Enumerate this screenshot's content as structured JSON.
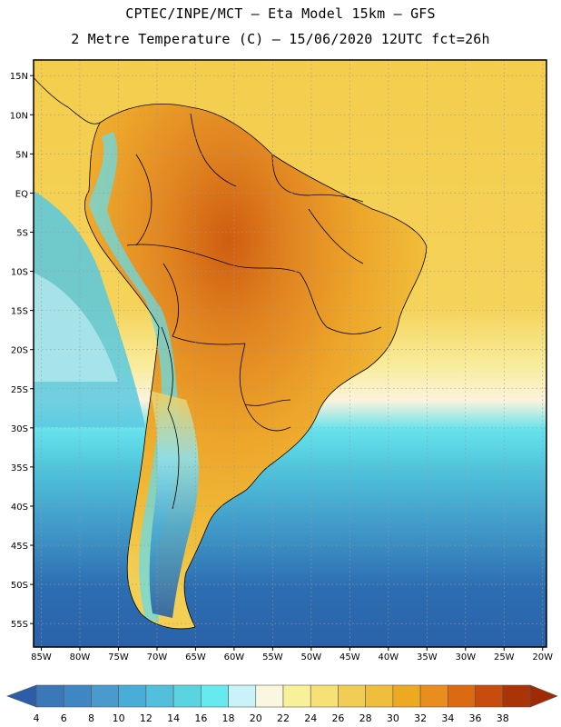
{
  "header": {
    "line1": "CPTEC/INPE/MCT –  Eta Model 15km – GFS",
    "line2": "2 Metre Temperature (C) – 15/06/2020 12UTC fct=26h"
  },
  "map": {
    "lat_labels": [
      "15N",
      "10N",
      "5N",
      "EQ",
      "5S",
      "10S",
      "15S",
      "20S",
      "25S",
      "30S",
      "35S",
      "40S",
      "45S",
      "50S",
      "55S"
    ],
    "lat_values": [
      15,
      10,
      5,
      0,
      -5,
      -10,
      -15,
      -20,
      -25,
      -30,
      -35,
      -40,
      -45,
      -50,
      -55
    ],
    "lon_labels": [
      "85W",
      "80W",
      "75W",
      "70W",
      "65W",
      "60W",
      "55W",
      "50W",
      "45W",
      "40W",
      "35W",
      "30W",
      "25W",
      "20W"
    ],
    "lon_values": [
      -85,
      -80,
      -75,
      -70,
      -65,
      -60,
      -55,
      -50,
      -45,
      -40,
      -35,
      -30,
      -25,
      -20
    ],
    "extent": {
      "lon_min": -86,
      "lon_max": -19.5,
      "lat_min": -58,
      "lat_max": 17
    },
    "grid": true,
    "field": "2 m temperature",
    "land_color": "#f2c84a",
    "ocean_warm_color": "#f5d55e",
    "ocean_cold_color": "#2a6db0"
  },
  "colorbar": {
    "labels": [
      "4",
      "6",
      "8",
      "10",
      "12",
      "14",
      "16",
      "18",
      "20",
      "22",
      "24",
      "26",
      "28",
      "30",
      "32",
      "34",
      "36",
      "38"
    ],
    "colors": [
      "#3a78b8",
      "#3e86c4",
      "#4a9acd",
      "#49aed7",
      "#52c0dc",
      "#5bd4e2",
      "#66eaf0",
      "#c9f2f9",
      "#fbf6e0",
      "#f9f19a",
      "#f6e176",
      "#f2cd55",
      "#efbe3c",
      "#eda920",
      "#e88d1e",
      "#dc6a12",
      "#c84c0b",
      "#a83408"
    ],
    "low_arrow_color": "#2c5ea8",
    "high_arrow_color": "#a02a06"
  }
}
